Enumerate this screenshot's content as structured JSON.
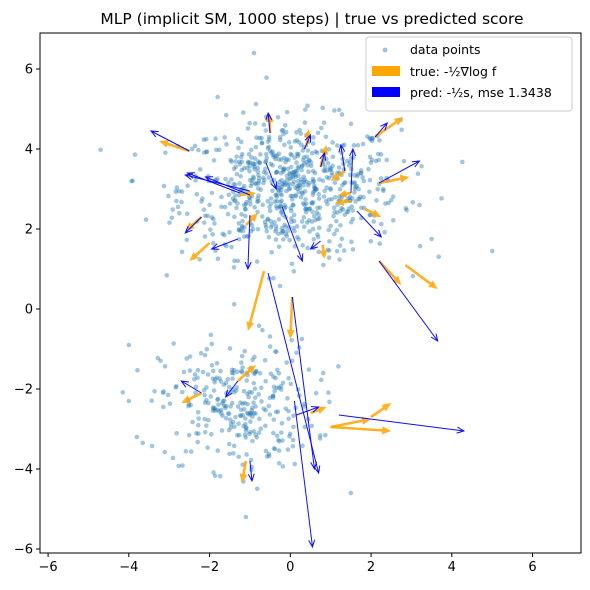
{
  "chart_data": {
    "type": "scatter",
    "title": "MLP (implicit SM, 1000 steps) |  true vs predicted score",
    "xlabel": "",
    "ylabel": "",
    "xlim": [
      -6.2,
      7.2
    ],
    "ylim": [
      -6.1,
      6.9
    ],
    "x_ticks": [
      -6,
      -4,
      -2,
      0,
      2,
      4,
      6
    ],
    "y_ticks": [
      -6,
      -4,
      -2,
      0,
      2,
      4,
      6
    ],
    "x_tick_labels": [
      "−6",
      "−4",
      "−2",
      "0",
      "2",
      "4",
      "6"
    ],
    "y_tick_labels": [
      "−6",
      "−4",
      "−2",
      "0",
      "2",
      "4",
      "6"
    ],
    "grid": false,
    "legend_position": "top-right",
    "colors": {
      "points": "#1f77b4",
      "true": "#ffa500",
      "pred": "#0000ff"
    },
    "legend": [
      {
        "key": "points",
        "label": "data points"
      },
      {
        "key": "true",
        "label": "true: -½∇log f"
      },
      {
        "key": "pred",
        "label": "pred: -½s, mse 1.3438"
      }
    ],
    "clusters": [
      {
        "cx": 0.0,
        "cy": 3.0,
        "sx": 1.35,
        "sy": 0.85,
        "n": 700
      },
      {
        "cx": -1.3,
        "cy": -2.4,
        "sx": 0.95,
        "sy": 0.8,
        "n": 300
      }
    ],
    "outlier_points": [
      {
        "x": 5.0,
        "y": 1.45
      },
      {
        "x": 3.5,
        "y": 1.75
      },
      {
        "x": -4.0,
        "y": -2.3
      },
      {
        "x": -3.8,
        "y": -3.2
      },
      {
        "x": -4.0,
        "y": -0.9
      },
      {
        "x": -1.8,
        "y": 5.3
      },
      {
        "x": -0.9,
        "y": 6.4
      },
      {
        "x": 1.5,
        "y": -4.6
      },
      {
        "x": -1.1,
        "y": -5.2
      },
      {
        "x": 3.2,
        "y": 2.6
      }
    ],
    "vector_fields": [
      {
        "name": "true",
        "key": "true",
        "vectors": [
          {
            "x": -2.5,
            "y": 3.95,
            "dx": -0.75,
            "dy": 0.25
          },
          {
            "x": -0.5,
            "y": 4.4,
            "dx": -0.02,
            "dy": 0.5
          },
          {
            "x": 0.4,
            "y": 4.05,
            "dx": 0.06,
            "dy": 0.45
          },
          {
            "x": 0.75,
            "y": 3.55,
            "dx": 0.15,
            "dy": 0.55
          },
          {
            "x": 2.1,
            "y": 4.3,
            "dx": 0.7,
            "dy": 0.5
          },
          {
            "x": 2.2,
            "y": 3.15,
            "dx": 0.75,
            "dy": 0.15
          },
          {
            "x": 1.35,
            "y": 3.45,
            "dx": -0.35,
            "dy": -0.25
          },
          {
            "x": 1.5,
            "y": 2.9,
            "dx": -0.3,
            "dy": -0.05
          },
          {
            "x": 1.5,
            "y": 2.7,
            "dx": -0.4,
            "dy": -0.05
          },
          {
            "x": 1.85,
            "y": 2.5,
            "dx": 0.4,
            "dy": -0.2
          },
          {
            "x": -2.2,
            "y": 2.3,
            "dx": -0.4,
            "dy": -0.35
          },
          {
            "x": -1.25,
            "y": 2.85,
            "dx": 0.4,
            "dy": 0.05
          },
          {
            "x": -1.1,
            "y": 2.1,
            "dx": 0.3,
            "dy": 0.3
          },
          {
            "x": -2.0,
            "y": 1.65,
            "dx": -0.5,
            "dy": -0.45
          },
          {
            "x": -0.65,
            "y": 0.95,
            "dx": -0.4,
            "dy": -1.5
          },
          {
            "x": 0.8,
            "y": 1.6,
            "dx": 0.05,
            "dy": -0.35
          },
          {
            "x": 2.2,
            "y": 1.2,
            "dx": 0.55,
            "dy": -0.6
          },
          {
            "x": 2.85,
            "y": 1.1,
            "dx": 0.8,
            "dy": -0.6
          },
          {
            "x": 0.05,
            "y": 0.3,
            "dx": -0.05,
            "dy": -1.05
          },
          {
            "x": -2.2,
            "y": -2.1,
            "dx": -0.5,
            "dy": -0.25
          },
          {
            "x": -1.3,
            "y": -1.8,
            "dx": 0.45,
            "dy": 0.4
          },
          {
            "x": 1.0,
            "y": -2.95,
            "dx": 1.0,
            "dy": 0.2
          },
          {
            "x": 1.0,
            "y": -2.95,
            "dx": 1.5,
            "dy": -0.1
          },
          {
            "x": 2.0,
            "y": -2.7,
            "dx": 0.5,
            "dy": 0.35
          },
          {
            "x": 0.5,
            "y": -2.6,
            "dx": 0.4,
            "dy": 0.15
          },
          {
            "x": -1.1,
            "y": -3.8,
            "dx": -0.1,
            "dy": -0.55
          }
        ]
      },
      {
        "name": "pred",
        "key": "pred",
        "vectors": [
          {
            "x": -2.5,
            "y": 3.95,
            "dx": -0.95,
            "dy": 0.5
          },
          {
            "x": -0.5,
            "y": 4.4,
            "dx": -0.05,
            "dy": 0.5
          },
          {
            "x": 0.35,
            "y": 4.0,
            "dx": 0.15,
            "dy": 0.35
          },
          {
            "x": 0.75,
            "y": 3.55,
            "dx": 0.1,
            "dy": 0.35
          },
          {
            "x": 2.1,
            "y": 4.3,
            "dx": 0.3,
            "dy": 0.35
          },
          {
            "x": 2.2,
            "y": 3.15,
            "dx": 1.0,
            "dy": 0.55
          },
          {
            "x": 1.35,
            "y": 3.45,
            "dx": -0.1,
            "dy": 0.65
          },
          {
            "x": -1.0,
            "y": 2.95,
            "dx": -1.6,
            "dy": 0.4
          },
          {
            "x": -1.0,
            "y": 2.85,
            "dx": -1.1,
            "dy": 0.45
          },
          {
            "x": -1.25,
            "y": 2.9,
            "dx": -1.3,
            "dy": 0.5
          },
          {
            "x": -0.6,
            "y": 3.65,
            "dx": 0.25,
            "dy": -0.65
          },
          {
            "x": -2.2,
            "y": 2.3,
            "dx": -0.4,
            "dy": -0.4
          },
          {
            "x": -1.3,
            "y": 1.75,
            "dx": -0.65,
            "dy": -0.25
          },
          {
            "x": -1.0,
            "y": 2.35,
            "dx": -0.05,
            "dy": -1.35
          },
          {
            "x": -0.2,
            "y": 2.55,
            "dx": 0.5,
            "dy": -1.35
          },
          {
            "x": 1.5,
            "y": 2.9,
            "dx": 0.05,
            "dy": 1.1
          },
          {
            "x": 1.65,
            "y": 2.45,
            "dx": 0.6,
            "dy": -0.65
          },
          {
            "x": 0.75,
            "y": 1.7,
            "dx": -0.25,
            "dy": -0.2
          },
          {
            "x": 2.2,
            "y": 1.2,
            "dx": 1.45,
            "dy": -2.0
          },
          {
            "x": -0.55,
            "y": 0.9,
            "dx": 1.25,
            "dy": -5.0
          },
          {
            "x": 0.05,
            "y": 0.3,
            "dx": 0.55,
            "dy": -4.3
          },
          {
            "x": -2.2,
            "y": -2.1,
            "dx": -0.5,
            "dy": 0.3
          },
          {
            "x": -1.3,
            "y": -1.8,
            "dx": -0.3,
            "dy": -0.4
          },
          {
            "x": 1.2,
            "y": -2.65,
            "dx": 3.1,
            "dy": -0.4
          },
          {
            "x": 0.1,
            "y": -2.3,
            "dx": 0.45,
            "dy": -3.65
          },
          {
            "x": 0.15,
            "y": -2.65,
            "dx": 0.55,
            "dy": 0.2
          },
          {
            "x": -1.0,
            "y": -3.8,
            "dx": 0.05,
            "dy": -0.5
          }
        ]
      }
    ]
  }
}
